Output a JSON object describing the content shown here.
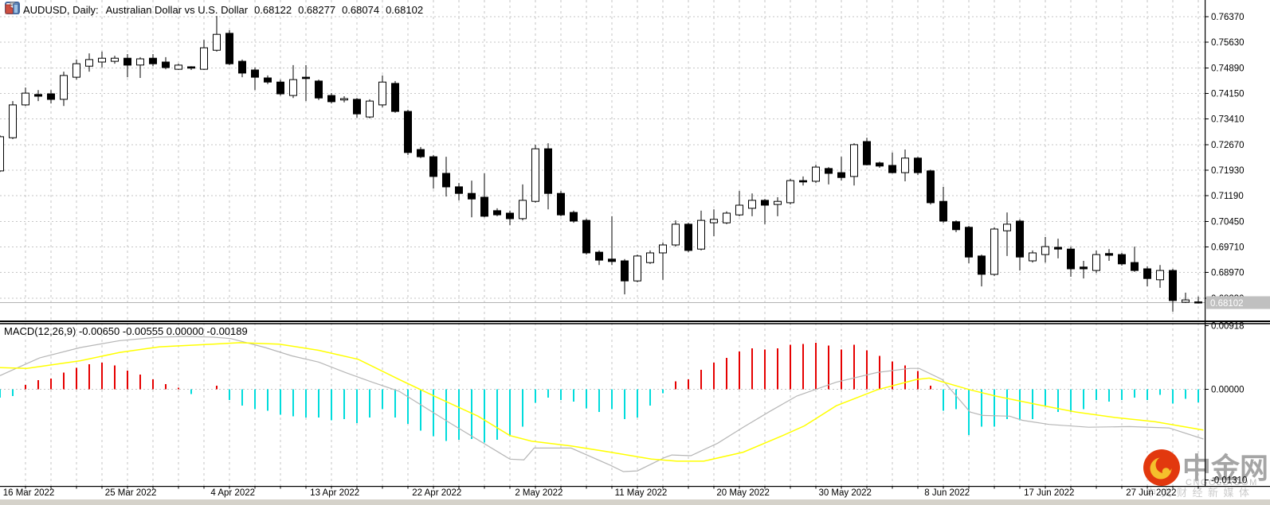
{
  "header": {
    "symbol": "AUDUSD, Daily:",
    "description": "Australian Dollar vs U.S. Dollar",
    "open": "0.68122",
    "high": "0.68277",
    "low": "0.68074",
    "close": "0.68102"
  },
  "macd_panel": {
    "label": "MACD(12,26,9)",
    "values": "-0.00650 -0.00555 0.00000 -0.00189"
  },
  "price_axis": {
    "labels": [
      "0.76370",
      "0.75630",
      "0.74890",
      "0.74150",
      "0.73410",
      "0.72670",
      "0.71930",
      "0.71190",
      "0.70450",
      "0.69710",
      "0.68970",
      "0.68230"
    ],
    "current_label": "0.68102"
  },
  "macd_axis": {
    "labels": [
      "0.00918",
      "0.00000",
      "-0.01310"
    ]
  },
  "dates": [
    "16 Mar 2022",
    "25 Mar 2022",
    "4 Apr 2022",
    "13 Apr 2022",
    "22 Apr 2022",
    "2 May 2022",
    "11 May 2022",
    "20 May 2022",
    "30 May 2022",
    "8 Jun 2022",
    "17 Jun 2022",
    "27 Jun 2022"
  ],
  "watermark": {
    "brand": "中金网",
    "domain": "CNGOLD.COM",
    "tagline": "中文财经新媒体"
  },
  "colors": {
    "grid": "#c6c6c6",
    "bull": "#ffffff",
    "bear": "#000000",
    "outline": "#000000",
    "hist_up": "#e60000",
    "hist_down": "#00dcdc",
    "macd_line": "#b6b6b6",
    "signal_line": "#ffff00",
    "price_line": "#b3b3b3",
    "price_label_bg": "#c0c0c0",
    "axis": "#000000",
    "bottom_strip": "#d5d2ca",
    "logo_red": "#e2380e",
    "logo_gold": "#f5c02c",
    "brand_gray": "#a5a5a5"
  },
  "chart_data": [
    {
      "type": "candlestick",
      "title": "AUDUSD, Daily: Australian Dollar vs U.S. Dollar",
      "ylabel": "price",
      "ylim": [
        0.6749,
        0.7674
      ],
      "grid": true,
      "legend_position": "none",
      "x_labels": [
        "16 Mar 2022",
        "25 Mar 2022",
        "4 Apr 2022",
        "13 Apr 2022",
        "22 Apr 2022",
        "2 May 2022",
        "11 May 2022",
        "20 May 2022",
        "30 May 2022",
        "8 Jun 2022",
        "17 Jun 2022",
        "27 Jun 2022"
      ],
      "y_ticks": [
        0.7637,
        0.7563,
        0.7489,
        0.7415,
        0.7341,
        0.7267,
        0.7193,
        0.7119,
        0.7045,
        0.6971,
        0.6897,
        0.6823
      ],
      "current_price": 0.68102,
      "ohlc": [
        [
          0.7191,
          0.7294,
          0.7188,
          0.729
        ],
        [
          0.7287,
          0.7393,
          0.7283,
          0.7382
        ],
        [
          0.7382,
          0.7432,
          0.7379,
          0.7416
        ],
        [
          0.7412,
          0.7425,
          0.7393,
          0.7407
        ],
        [
          0.7414,
          0.7425,
          0.7386,
          0.7398
        ],
        [
          0.7398,
          0.7478,
          0.7379,
          0.7467
        ],
        [
          0.7462,
          0.7513,
          0.7455,
          0.7501
        ],
        [
          0.7494,
          0.7531,
          0.7478,
          0.7513
        ],
        [
          0.7506,
          0.7536,
          0.749,
          0.7517
        ],
        [
          0.7508,
          0.7524,
          0.7501,
          0.7517
        ],
        [
          0.7517,
          0.7529,
          0.7462,
          0.7497
        ],
        [
          0.7497,
          0.752,
          0.746,
          0.7515
        ],
        [
          0.7517,
          0.7529,
          0.7494,
          0.7501
        ],
        [
          0.7506,
          0.752,
          0.7485,
          0.749
        ],
        [
          0.7485,
          0.7501,
          0.7483,
          0.7497
        ],
        [
          0.7492,
          0.7494,
          0.7483,
          0.7488
        ],
        [
          0.7485,
          0.757,
          0.7483,
          0.7547
        ],
        [
          0.754,
          0.7639,
          0.7536,
          0.7586
        ],
        [
          0.7589,
          0.7598,
          0.7497,
          0.7501
        ],
        [
          0.7508,
          0.7513,
          0.7462,
          0.7474
        ],
        [
          0.7483,
          0.749,
          0.7425,
          0.7462
        ],
        [
          0.746,
          0.7467,
          0.7442,
          0.7448
        ],
        [
          0.7448,
          0.7455,
          0.7409,
          0.7414
        ],
        [
          0.7409,
          0.7497,
          0.7402,
          0.7455
        ],
        [
          0.7462,
          0.7497,
          0.7393,
          0.7458
        ],
        [
          0.7451,
          0.7455,
          0.7396,
          0.7402
        ],
        [
          0.7409,
          0.7416,
          0.7386,
          0.7391
        ],
        [
          0.7396,
          0.7407,
          0.7389,
          0.74
        ],
        [
          0.7398,
          0.7402,
          0.7345,
          0.7356
        ],
        [
          0.7347,
          0.7398,
          0.7343,
          0.7393
        ],
        [
          0.7382,
          0.7467,
          0.7375,
          0.7448
        ],
        [
          0.7444,
          0.7451,
          0.7359,
          0.7363
        ],
        [
          0.7363,
          0.7368,
          0.7237,
          0.7244
        ],
        [
          0.7253,
          0.726,
          0.7228,
          0.7232
        ],
        [
          0.7232,
          0.7237,
          0.714,
          0.7175
        ],
        [
          0.7184,
          0.7232,
          0.7117,
          0.7145
        ],
        [
          0.7145,
          0.7156,
          0.7106,
          0.7126
        ],
        [
          0.7126,
          0.7163,
          0.7057,
          0.711
        ],
        [
          0.7115,
          0.7184,
          0.7057,
          0.706
        ],
        [
          0.7076,
          0.7083,
          0.706,
          0.7064
        ],
        [
          0.7069,
          0.7076,
          0.7034,
          0.7053
        ],
        [
          0.7053,
          0.7152,
          0.7048,
          0.7106
        ],
        [
          0.7103,
          0.7267,
          0.7099,
          0.7255
        ],
        [
          0.7255,
          0.7271,
          0.708,
          0.7126
        ],
        [
          0.7126,
          0.7133,
          0.706,
          0.7064
        ],
        [
          0.7071,
          0.7076,
          0.7041,
          0.7046
        ],
        [
          0.7048,
          0.7053,
          0.6949,
          0.6954
        ],
        [
          0.6956,
          0.6961,
          0.6919,
          0.6933
        ],
        [
          0.6936,
          0.706,
          0.6919,
          0.6929
        ],
        [
          0.6931,
          0.6936,
          0.6834,
          0.6873
        ],
        [
          0.6873,
          0.6949,
          0.6869,
          0.6945
        ],
        [
          0.6926,
          0.6961,
          0.6922,
          0.6954
        ],
        [
          0.6954,
          0.6984,
          0.6876,
          0.6977
        ],
        [
          0.6977,
          0.7048,
          0.6972,
          0.7037
        ],
        [
          0.7037,
          0.7041,
          0.6956,
          0.6961
        ],
        [
          0.6965,
          0.7076,
          0.6961,
          0.7048
        ],
        [
          0.7041,
          0.708,
          0.7002,
          0.7051
        ],
        [
          0.7041,
          0.7074,
          0.7037,
          0.7069
        ],
        [
          0.7064,
          0.7133,
          0.706,
          0.7092
        ],
        [
          0.7083,
          0.7126,
          0.706,
          0.7106
        ],
        [
          0.7106,
          0.711,
          0.7037,
          0.7092
        ],
        [
          0.7094,
          0.7115,
          0.706,
          0.7103
        ],
        [
          0.7099,
          0.7168,
          0.7094,
          0.7163
        ],
        [
          0.7163,
          0.7175,
          0.7149,
          0.7159
        ],
        [
          0.7161,
          0.7209,
          0.7156,
          0.7202
        ],
        [
          0.7198,
          0.7202,
          0.7152,
          0.7184
        ],
        [
          0.7186,
          0.7232,
          0.7163,
          0.7172
        ],
        [
          0.7175,
          0.7271,
          0.7149,
          0.7267
        ],
        [
          0.7276,
          0.7287,
          0.7207,
          0.7209
        ],
        [
          0.7214,
          0.7218,
          0.72,
          0.7205
        ],
        [
          0.7207,
          0.7244,
          0.7184,
          0.7186
        ],
        [
          0.7186,
          0.7253,
          0.7161,
          0.7228
        ],
        [
          0.7228,
          0.7232,
          0.7179,
          0.7186
        ],
        [
          0.7191,
          0.7195,
          0.7094,
          0.7099
        ],
        [
          0.7103,
          0.7145,
          0.7041,
          0.7046
        ],
        [
          0.7044,
          0.7048,
          0.7014,
          0.7021
        ],
        [
          0.7028,
          0.7032,
          0.6924,
          0.6942
        ],
        [
          0.6945,
          0.6949,
          0.6857,
          0.6892
        ],
        [
          0.6892,
          0.7028,
          0.6887,
          0.7023
        ],
        [
          0.7018,
          0.7071,
          0.6945,
          0.7037
        ],
        [
          0.7046,
          0.7051,
          0.6903,
          0.6942
        ],
        [
          0.6931,
          0.6961,
          0.6926,
          0.6954
        ],
        [
          0.6949,
          0.7,
          0.6926,
          0.6972
        ],
        [
          0.697,
          0.6995,
          0.6938,
          0.6965
        ],
        [
          0.6965,
          0.6972,
          0.6885,
          0.6908
        ],
        [
          0.6913,
          0.6931,
          0.688,
          0.6908
        ],
        [
          0.6903,
          0.6961,
          0.6896,
          0.6949
        ],
        [
          0.6952,
          0.6965,
          0.6931,
          0.6947
        ],
        [
          0.6949,
          0.6954,
          0.6917,
          0.6922
        ],
        [
          0.6926,
          0.6972,
          0.6899,
          0.6903
        ],
        [
          0.6908,
          0.6915,
          0.6857,
          0.688
        ],
        [
          0.6876,
          0.6919,
          0.6853,
          0.6903
        ],
        [
          0.6903,
          0.6908,
          0.6784,
          0.6816
        ],
        [
          0.6811,
          0.6839,
          0.6809,
          0.6818
        ],
        [
          0.68122,
          0.68277,
          0.68074,
          0.68102
        ]
      ]
    },
    {
      "type": "macd",
      "title": "MACD(12,26,9)",
      "current_values": [
        -0.0065,
        -0.00555,
        0.0,
        -0.00189
      ],
      "ylim": [
        -0.0131,
        0.00918
      ],
      "y_ticks": [
        0.00918,
        0,
        -0.0131
      ],
      "histogram": [
        -0.0012,
        -0.001,
        0.0006,
        0.0013,
        0.0015,
        0.0024,
        0.0031,
        0.0036,
        0.0038,
        0.0034,
        0.0027,
        0.0021,
        0.0014,
        0.0007,
        0.0002,
        -0.0007,
        0,
        0.0005,
        -0.0016,
        -0.0024,
        -0.0029,
        -0.0031,
        -0.0037,
        -0.0039,
        -0.0041,
        -0.0041,
        -0.0045,
        -0.0043,
        -0.0049,
        -0.0041,
        -0.0029,
        -0.0041,
        -0.005,
        -0.006,
        -0.0068,
        -0.0075,
        -0.0073,
        -0.0072,
        -0.0077,
        -0.0073,
        -0.0068,
        -0.0054,
        -0.002,
        -0.0012,
        -0.0016,
        -0.0018,
        -0.0028,
        -0.0033,
        -0.0029,
        -0.0043,
        -0.0041,
        -0.0024,
        -0.0006,
        0.0011,
        0.0014,
        0.0028,
        0.0038,
        0.0045,
        0.0054,
        0.0059,
        0.0057,
        0.0059,
        0.0064,
        0.0065,
        0.0067,
        0.0063,
        0.0057,
        0.0064,
        0.0056,
        0.0048,
        0.004,
        0.0034,
        0.0026,
        0.0005,
        -0.0031,
        -0.0029,
        -0.0066,
        -0.0054,
        -0.0054,
        -0.0043,
        -0.0045,
        -0.0043,
        -0.0024,
        -0.0033,
        -0.0033,
        -0.0029,
        -0.0016,
        -0.0018,
        -0.0016,
        -0.0012,
        -0.0016,
        -0.0008,
        -0.0021,
        -0.0014,
        -0.00189
      ],
      "macd_line": [
        [
          0,
          0.00195
        ],
        [
          3.1,
          0.0045
        ],
        [
          6.3,
          0.006
        ],
        [
          9.4,
          0.007
        ],
        [
          12.5,
          0.0075
        ],
        [
          14.7,
          0.0076
        ],
        [
          16.7,
          0.0075
        ],
        [
          18.1,
          0.0073
        ],
        [
          20.8,
          0.006
        ],
        [
          22.9,
          0.0048
        ],
        [
          25,
          0.0039
        ],
        [
          27.1,
          0.0024
        ],
        [
          29.2,
          0.001
        ],
        [
          31.3,
          -0.0003
        ],
        [
          35.4,
          -0.005
        ],
        [
          40,
          -0.0101
        ],
        [
          41.1,
          -0.0102
        ],
        [
          41.9,
          -0.0085
        ],
        [
          44.8,
          -0.0085
        ],
        [
          47.9,
          -0.011
        ],
        [
          48.9,
          -0.0119
        ],
        [
          50,
          -0.0118
        ],
        [
          52.1,
          -0.0099
        ],
        [
          52.7,
          -0.0095
        ],
        [
          54.2,
          -0.0096
        ],
        [
          56.3,
          -0.0078
        ],
        [
          58.3,
          -0.0055
        ],
        [
          60.4,
          -0.0032
        ],
        [
          62.5,
          -0.001
        ],
        [
          65.6,
          0.001
        ],
        [
          68.8,
          0.0024
        ],
        [
          71.4,
          0.003
        ],
        [
          72.1,
          0.003
        ],
        [
          73.9,
          0.0014
        ],
        [
          76.1,
          -0.0033
        ],
        [
          77.1,
          -0.0038
        ],
        [
          79.2,
          -0.0039
        ],
        [
          80.2,
          -0.0045
        ],
        [
          82.3,
          -0.0051
        ],
        [
          85.4,
          -0.0055
        ],
        [
          88.6,
          -0.0054
        ],
        [
          91.7,
          -0.0056
        ],
        [
          94.4,
          -0.0072
        ]
      ],
      "signal_line": [
        [
          0,
          0.0031
        ],
        [
          2.1,
          0.003
        ],
        [
          6.3,
          0.0041
        ],
        [
          9.4,
          0.0053
        ],
        [
          12.5,
          0.0061
        ],
        [
          16.7,
          0.0065
        ],
        [
          18.8,
          0.0067
        ],
        [
          21.9,
          0.0065
        ],
        [
          25,
          0.0056
        ],
        [
          28.1,
          0.0043
        ],
        [
          31.3,
          0.0014
        ],
        [
          34.4,
          -0.0013
        ],
        [
          37.5,
          -0.0039
        ],
        [
          40,
          -0.0067
        ],
        [
          41.7,
          -0.0075
        ],
        [
          44.8,
          -0.0082
        ],
        [
          47.9,
          -0.0091
        ],
        [
          51.1,
          -0.0101
        ],
        [
          53.1,
          -0.0104
        ],
        [
          55.2,
          -0.0104
        ],
        [
          58.3,
          -0.0091
        ],
        [
          61.4,
          -0.0067
        ],
        [
          63.1,
          -0.0053
        ],
        [
          65.6,
          -0.0024
        ],
        [
          68.8,
          -0.0001
        ],
        [
          71.9,
          0.0014
        ],
        [
          72.9,
          0.0016
        ],
        [
          76.1,
          -0.0001
        ],
        [
          78.1,
          -0.001
        ],
        [
          81.3,
          -0.0022
        ],
        [
          84.4,
          -0.0033
        ],
        [
          87.5,
          -0.0041
        ],
        [
          90.6,
          -0.0047
        ],
        [
          94.4,
          -0.0059
        ]
      ]
    }
  ]
}
